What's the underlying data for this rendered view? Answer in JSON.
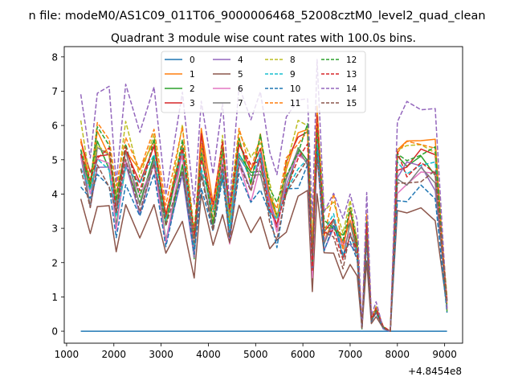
{
  "chart_data": {
    "type": "line",
    "suptitle": "n file: modeM0/AS1C09_011T06_9000006468_52008cztM0_level2_quad_clean",
    "title": "Quadrant 3 module wise count rates with 100.0s bins.",
    "xlabel": "",
    "ylabel": "",
    "x_offset_label": "+4.8454e8",
    "xlim": [
      950,
      9380
    ],
    "ylim": [
      -0.35,
      8.3
    ],
    "xticks": [
      1000,
      2000,
      3000,
      4000,
      5000,
      6000,
      7000,
      8000,
      9000
    ],
    "yticks": [
      0,
      1,
      2,
      3,
      4,
      5,
      6,
      7,
      8
    ],
    "legend": {
      "placement": "upper-center",
      "ncol": 4
    },
    "anchors_x": [
      1300,
      1500,
      1650,
      1900,
      2050,
      2250,
      2550,
      2850,
      3100,
      3450,
      3700,
      3850,
      4100,
      4300,
      4450,
      4650,
      4900,
      5100,
      5300,
      5450,
      5650,
      5900,
      6100,
      6200,
      6300,
      6450,
      6650,
      6850,
      7000,
      7150,
      7250,
      7350,
      7450,
      7550,
      7700,
      7850,
      8000,
      8200,
      8500,
      8800,
      9050
    ],
    "anchor_profile": [
      5.0,
      3.9,
      5.1,
      4.8,
      3.4,
      5.0,
      3.9,
      4.8,
      3.0,
      5.0,
      2.5,
      5.0,
      3.2,
      4.8,
      3.0,
      5.0,
      4.2,
      4.9,
      3.6,
      3.1,
      4.3,
      5.0,
      5.1,
      2.0,
      5.7,
      2.7,
      3.1,
      2.3,
      3.0,
      2.3,
      0.1,
      2.9,
      0.3,
      0.6,
      0.1,
      0.0,
      4.6,
      4.6,
      4.6,
      4.6,
      0.95
    ],
    "dip_index_range": [
      29,
      35
    ],
    "series": [
      {
        "name": "0",
        "color": "#1f77b4",
        "dash": false,
        "scale": 0.0,
        "noise": 0.0
      },
      {
        "name": "1",
        "color": "#ff7f0e",
        "dash": false,
        "scale": 1.12,
        "noise": 0.45
      },
      {
        "name": "2",
        "color": "#2ca02c",
        "dash": false,
        "scale": 1.02,
        "noise": 0.5
      },
      {
        "name": "3",
        "color": "#d62728",
        "dash": false,
        "scale": 1.08,
        "noise": 0.45
      },
      {
        "name": "4",
        "color": "#9467bd",
        "dash": false,
        "scale": 0.98,
        "noise": 0.45
      },
      {
        "name": "5",
        "color": "#8c564b",
        "dash": false,
        "scale": 0.72,
        "noise": 0.45
      },
      {
        "name": "6",
        "color": "#e377c2",
        "dash": false,
        "scale": 0.96,
        "noise": 0.4
      },
      {
        "name": "7",
        "color": "#7f7f7f",
        "dash": false,
        "scale": 1.0,
        "noise": 0.35
      },
      {
        "name": "8",
        "color": "#bcbd22",
        "dash": true,
        "scale": 1.14,
        "noise": 0.45
      },
      {
        "name": "9",
        "color": "#17becf",
        "dash": true,
        "scale": 1.02,
        "noise": 0.4
      },
      {
        "name": "10",
        "color": "#1f77b4",
        "dash": true,
        "scale": 0.9,
        "noise": 0.4
      },
      {
        "name": "11",
        "color": "#ff7f0e",
        "dash": true,
        "scale": 1.16,
        "noise": 0.45
      },
      {
        "name": "12",
        "color": "#2ca02c",
        "dash": true,
        "scale": 1.1,
        "noise": 0.45
      },
      {
        "name": "13",
        "color": "#d62728",
        "dash": true,
        "scale": 1.06,
        "noise": 0.45
      },
      {
        "name": "14",
        "color": "#9467bd",
        "dash": true,
        "scale": 1.4,
        "noise": 0.5
      },
      {
        "name": "15",
        "color": "#8c564b",
        "dash": true,
        "scale": 0.95,
        "noise": 0.4
      }
    ]
  }
}
